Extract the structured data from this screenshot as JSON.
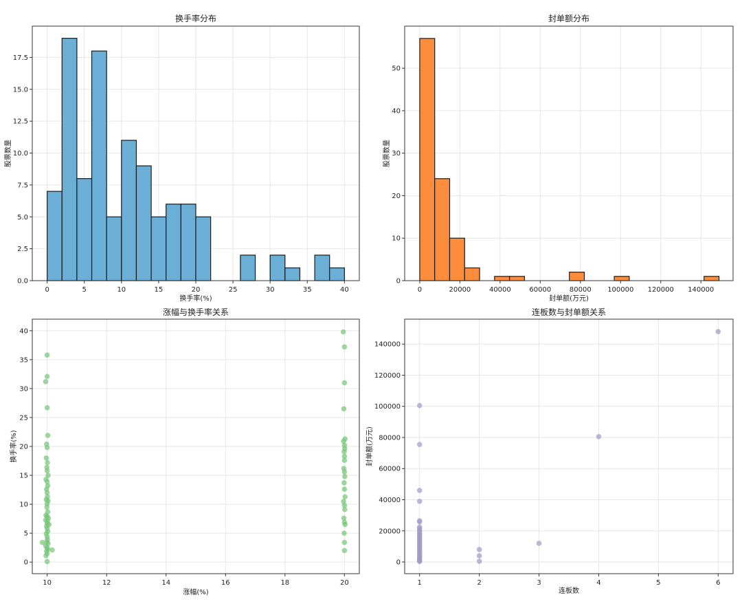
{
  "chart_data": [
    {
      "type": "bar",
      "title": "换手率分布",
      "xlabel": "换手率(%)",
      "ylabel": "股票数量",
      "xlim": [
        -2,
        42
      ],
      "ylim": [
        0,
        19.95
      ],
      "xticks": [
        0,
        5,
        10,
        15,
        20,
        25,
        30,
        35,
        40
      ],
      "xtick_labels": [
        "0",
        "5",
        "10",
        "15",
        "20",
        "25",
        "30",
        "35",
        "40"
      ],
      "yticks": [
        0,
        2.5,
        5,
        7.5,
        10,
        12.5,
        15,
        17.5
      ],
      "ytick_labels": [
        "0.0",
        "2.5",
        "5.0",
        "7.5",
        "10.0",
        "12.5",
        "15.0",
        "17.5"
      ],
      "bin_edges": [
        0,
        2,
        4,
        6,
        8,
        10,
        12,
        14,
        16,
        18,
        20,
        22,
        24,
        26,
        28,
        30,
        32,
        34,
        36,
        38,
        40
      ],
      "counts": [
        7,
        19,
        8,
        18,
        5,
        11,
        9,
        5,
        6,
        6,
        5,
        0,
        0,
        2,
        0,
        2,
        1,
        0,
        2,
        1
      ],
      "color": "#6baed6",
      "grid": true
    },
    {
      "type": "bar",
      "title": "封单额分布",
      "xlabel": "封单额(万元)",
      "ylabel": "股票数量",
      "xlim": [
        -7500,
        156000
      ],
      "ylim": [
        0,
        59.9
      ],
      "xticks": [
        0,
        20000,
        40000,
        60000,
        80000,
        100000,
        120000,
        140000
      ],
      "xtick_labels": [
        "0",
        "20000",
        "40000",
        "60000",
        "80000",
        "100000",
        "120000",
        "140000"
      ],
      "yticks": [
        0,
        10,
        20,
        30,
        40,
        50
      ],
      "ytick_labels": [
        "0",
        "10",
        "20",
        "30",
        "40",
        "50"
      ],
      "bin_edges": [
        0,
        7450,
        14900,
        22350,
        29800,
        37250,
        44700,
        52150,
        59600,
        67050,
        74500,
        81950,
        89400,
        96850,
        104300,
        111750,
        119200,
        126650,
        134100,
        141550,
        149000
      ],
      "counts": [
        57,
        24,
        10,
        3,
        0,
        1,
        1,
        0,
        0,
        0,
        2,
        0,
        0,
        1,
        0,
        0,
        0,
        0,
        0,
        1
      ],
      "color": "#fd8d3c",
      "grid": true
    },
    {
      "type": "scatter",
      "title": "涨幅与换手率关系",
      "xlabel": "涨幅(%)",
      "ylabel": "换手率(%)",
      "xlim": [
        9.5,
        20.5
      ],
      "ylim": [
        -2,
        42
      ],
      "xticks": [
        10,
        12,
        14,
        16,
        18,
        20
      ],
      "xtick_labels": [
        "10",
        "12",
        "14",
        "16",
        "18",
        "20"
      ],
      "yticks": [
        0,
        5,
        10,
        15,
        20,
        25,
        30,
        35,
        40
      ],
      "ytick_labels": [
        "0",
        "5",
        "10",
        "15",
        "20",
        "25",
        "30",
        "35",
        "40"
      ],
      "color": "#74c476",
      "grid": true,
      "points": [
        [
          10.0,
          35.8
        ],
        [
          10.0,
          32.1
        ],
        [
          9.95,
          31.2
        ],
        [
          10.0,
          26.7
        ],
        [
          10.02,
          21.9
        ],
        [
          9.98,
          20.4
        ],
        [
          10.0,
          19.8
        ],
        [
          9.97,
          18.0
        ],
        [
          10.01,
          17.2
        ],
        [
          9.99,
          16.4
        ],
        [
          10.0,
          15.8
        ],
        [
          10.03,
          15.0
        ],
        [
          9.96,
          14.3
        ],
        [
          10.0,
          13.9
        ],
        [
          10.02,
          13.2
        ],
        [
          9.98,
          12.6
        ],
        [
          10.0,
          12.0
        ],
        [
          10.01,
          11.3
        ],
        [
          9.97,
          10.8
        ],
        [
          10.03,
          10.6
        ],
        [
          10.0,
          10.1
        ],
        [
          9.99,
          9.5
        ],
        [
          10.02,
          8.7
        ],
        [
          9.96,
          8.1
        ],
        [
          10.0,
          7.9
        ],
        [
          10.04,
          7.6
        ],
        [
          9.95,
          7.3
        ],
        [
          10.01,
          7.1
        ],
        [
          10.0,
          6.7
        ],
        [
          9.98,
          6.2
        ],
        [
          10.06,
          6.5
        ],
        [
          10.0,
          5.8
        ],
        [
          10.02,
          5.3
        ],
        [
          9.97,
          4.9
        ],
        [
          10.0,
          4.4
        ],
        [
          10.01,
          3.9
        ],
        [
          9.99,
          3.5
        ],
        [
          10.03,
          3.2
        ],
        [
          9.84,
          3.4
        ],
        [
          9.95,
          2.8
        ],
        [
          10.0,
          2.5
        ],
        [
          10.02,
          2.2
        ],
        [
          10.17,
          2.1
        ],
        [
          9.98,
          1.9
        ],
        [
          10.0,
          1.5
        ],
        [
          9.96,
          1.1
        ],
        [
          10.0,
          0.1
        ],
        [
          19.96,
          39.8
        ],
        [
          20.0,
          37.2
        ],
        [
          20.0,
          31.0
        ],
        [
          19.98,
          26.5
        ],
        [
          20.02,
          21.3
        ],
        [
          19.97,
          20.9
        ],
        [
          20.0,
          20.2
        ],
        [
          20.01,
          19.6
        ],
        [
          19.99,
          19.1
        ],
        [
          20.0,
          18.3
        ],
        [
          20.0,
          17.6
        ],
        [
          19.98,
          16.2
        ],
        [
          20.0,
          15.6
        ],
        [
          20.01,
          14.8
        ],
        [
          19.99,
          13.7
        ],
        [
          20.0,
          12.6
        ],
        [
          20.02,
          11.3
        ],
        [
          19.97,
          10.5
        ],
        [
          20.0,
          9.8
        ],
        [
          20.01,
          9.1
        ],
        [
          19.98,
          7.6
        ],
        [
          20.0,
          6.9
        ],
        [
          20.02,
          6.5
        ],
        [
          19.99,
          5.0
        ],
        [
          20.0,
          3.4
        ],
        [
          20.0,
          2.0
        ]
      ]
    },
    {
      "type": "scatter",
      "title": "连板数与封单额关系",
      "xlabel": "连板数",
      "ylabel": "封单额(万元)",
      "xlim": [
        0.75,
        6.25
      ],
      "ylim": [
        -7500,
        156000
      ],
      "xticks": [
        1,
        2,
        3,
        4,
        5,
        6
      ],
      "xtick_labels": [
        "1",
        "2",
        "3",
        "4",
        "5",
        "6"
      ],
      "yticks": [
        0,
        20000,
        40000,
        60000,
        80000,
        100000,
        120000,
        140000
      ],
      "ytick_labels": [
        "0",
        "20000",
        "40000",
        "60000",
        "80000",
        "100000",
        "120000",
        "140000"
      ],
      "color": "#9e9ac8",
      "grid": true,
      "points": [
        [
          1,
          100500
        ],
        [
          1,
          75500
        ],
        [
          1,
          46000
        ],
        [
          1,
          39000
        ],
        [
          1,
          26500
        ],
        [
          1,
          25800
        ],
        [
          1,
          22500
        ],
        [
          1,
          21500
        ],
        [
          1,
          20500
        ],
        [
          1,
          19500
        ],
        [
          1,
          18500
        ],
        [
          1,
          17500
        ],
        [
          1,
          16500
        ],
        [
          1,
          15500
        ],
        [
          1,
          14500
        ],
        [
          1,
          13500
        ],
        [
          1,
          12500
        ],
        [
          1,
          11500
        ],
        [
          1,
          10500
        ],
        [
          1,
          9500
        ],
        [
          1,
          8500
        ],
        [
          1,
          7500
        ],
        [
          1,
          6500
        ],
        [
          1,
          5500
        ],
        [
          1,
          4500
        ],
        [
          1,
          3500
        ],
        [
          1,
          2500
        ],
        [
          1,
          1500
        ],
        [
          1,
          800
        ],
        [
          1,
          300
        ],
        [
          2,
          8000
        ],
        [
          2,
          4000
        ],
        [
          2,
          500
        ],
        [
          3,
          12000
        ],
        [
          4,
          80500
        ],
        [
          6,
          148000
        ]
      ]
    }
  ]
}
